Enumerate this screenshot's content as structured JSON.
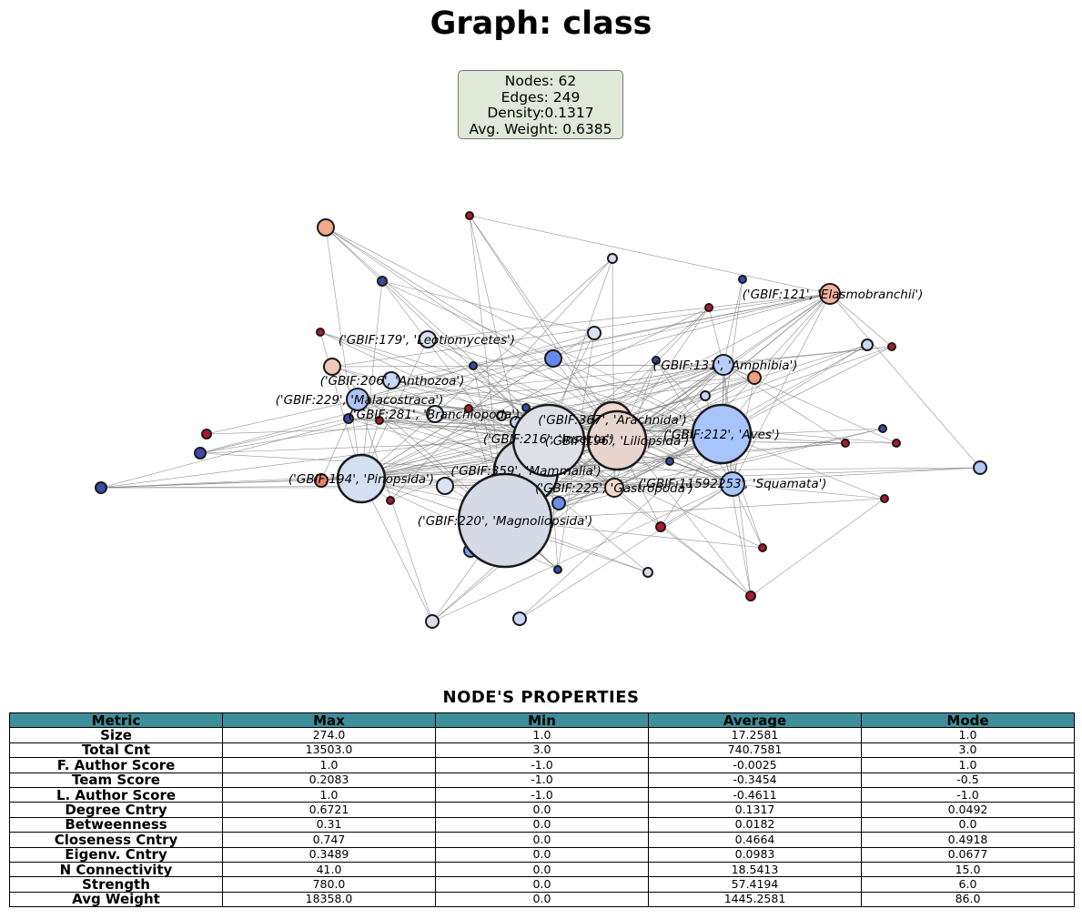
{
  "title": "Graph: class",
  "stats": {
    "nodes": "Nodes: 62",
    "edges": "Edges: 249",
    "density": "Density:0.1317",
    "avg_weight": "Avg. Weight: 0.6385"
  },
  "colors": {
    "edge": "#808080",
    "node_stroke": "#1a1a1a",
    "header_bg": "#3e8f9a",
    "stats_bg": "#e0e8d8"
  },
  "graph": {
    "labeled_nodes": [
      "('GBIF:121', 'Elasmobranchii')",
      "('GBIF:179', 'Leotiomycetes')",
      "('GBIF:131', 'Amphibia')",
      "('GBIF:206', 'Anthozoa')",
      "('GBIF:229', 'Malacostraca')",
      "('GBIF:281', 'Branchiopoda')",
      "('GBIF:367', 'Arachnida')",
      "('GBIF:212', 'Aves')",
      "('GBIF:216', 'Insecta')",
      "('GBIF:196', 'Liliopsida')",
      "('GBIF:359', 'Mammalia')",
      "('GBIF:194', 'Pinopsida')",
      "('GBIF:11592253', 'Squamata')",
      "('GBIF:225', 'Gastropoda')",
      "('GBIF:220', 'Magnoliopsida')"
    ]
  },
  "table": {
    "title": "NODE'S PROPERTIES",
    "headers": [
      "Metric",
      "Max",
      "Min",
      "Average",
      "Mode"
    ],
    "rows": [
      [
        "Size",
        "274.0",
        "1.0",
        "17.2581",
        "1.0"
      ],
      [
        "Total Cnt",
        "13503.0",
        "3.0",
        "740.7581",
        "3.0"
      ],
      [
        "F. Author Score",
        "1.0",
        "-1.0",
        "-0.0025",
        "1.0"
      ],
      [
        "Team Score",
        "0.2083",
        "-1.0",
        "-0.3454",
        "-0.5"
      ],
      [
        "L. Author Score",
        "1.0",
        "-1.0",
        "-0.4611",
        "-1.0"
      ],
      [
        "Degree Cntry",
        "0.6721",
        "0.0",
        "0.1317",
        "0.0492"
      ],
      [
        "Betweenness",
        "0.31",
        "0.0",
        "0.0182",
        "0.0"
      ],
      [
        "Closeness Cntry",
        "0.747",
        "0.0",
        "0.4664",
        "0.4918"
      ],
      [
        "Eigenv. Cntry",
        "0.3489",
        "0.0",
        "0.0983",
        "0.0677"
      ],
      [
        "N Connectivity",
        "41.0",
        "0.0",
        "18.5413",
        "15.0"
      ],
      [
        "Strength",
        "780.0",
        "0.0",
        "57.4194",
        "6.0"
      ],
      [
        "Avg Weight",
        "18358.0",
        "0.0",
        "1445.2581",
        "86.0"
      ]
    ]
  }
}
